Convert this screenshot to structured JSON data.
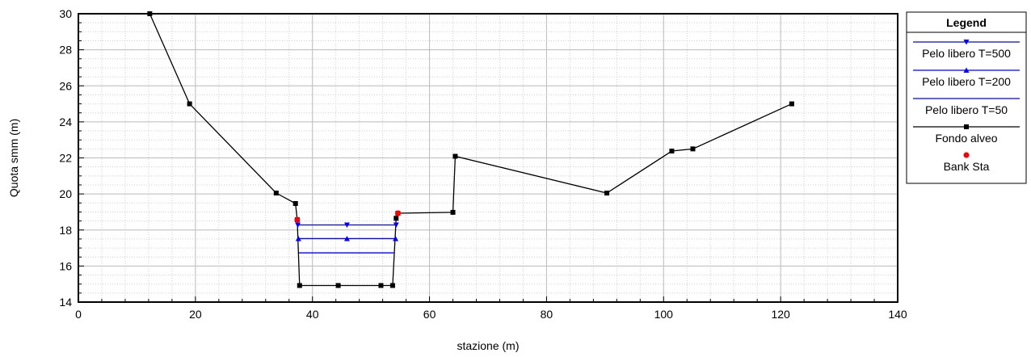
{
  "chart_data": {
    "type": "line",
    "title": "",
    "xlabel": "stazione (m)",
    "ylabel": "Quota smm (m)",
    "xlim": [
      0,
      140
    ],
    "ylim": [
      14,
      30
    ],
    "xticks": [
      0,
      20,
      40,
      60,
      80,
      100,
      120,
      140
    ],
    "yticks": [
      14,
      16,
      18,
      20,
      22,
      24,
      26,
      28,
      30
    ],
    "grid": true,
    "legend_title": "Legend",
    "legend_position": "right",
    "series": [
      {
        "name": "Pelo libero T=500",
        "color": "#0000ff",
        "marker": "triangle-down",
        "x": [
          37.5,
          45.9,
          54.3
        ],
        "y": [
          18.28,
          18.28,
          18.28
        ]
      },
      {
        "name": "Pelo libero T=200",
        "color": "#0000ff",
        "marker": "triangle-up",
        "x": [
          37.6,
          45.9,
          54.2
        ],
        "y": [
          17.52,
          17.52,
          17.52
        ]
      },
      {
        "name": "Pelo libero T=50",
        "color": "#0000ff",
        "marker": "none",
        "x": [
          37.7,
          53.9
        ],
        "y": [
          16.73,
          16.73
        ]
      },
      {
        "name": "Fondo alveo",
        "color": "#000000",
        "marker": "square",
        "x": [
          12.2,
          19.0,
          33.8,
          37.1,
          37.4,
          37.8,
          44.4,
          51.7,
          53.7,
          54.3,
          54.6,
          64.0,
          64.4,
          90.3,
          101.4,
          105.0,
          121.9
        ],
        "y": [
          30.0,
          25.0,
          20.05,
          19.47,
          18.57,
          14.92,
          14.92,
          14.92,
          14.92,
          18.65,
          18.93,
          18.98,
          22.09,
          20.05,
          22.38,
          22.5,
          25.0
        ]
      },
      {
        "name": "Bank Sta",
        "color": "#ff0000",
        "marker": "circle",
        "x": [
          37.4,
          54.6
        ],
        "y": [
          18.57,
          18.93
        ]
      }
    ]
  }
}
